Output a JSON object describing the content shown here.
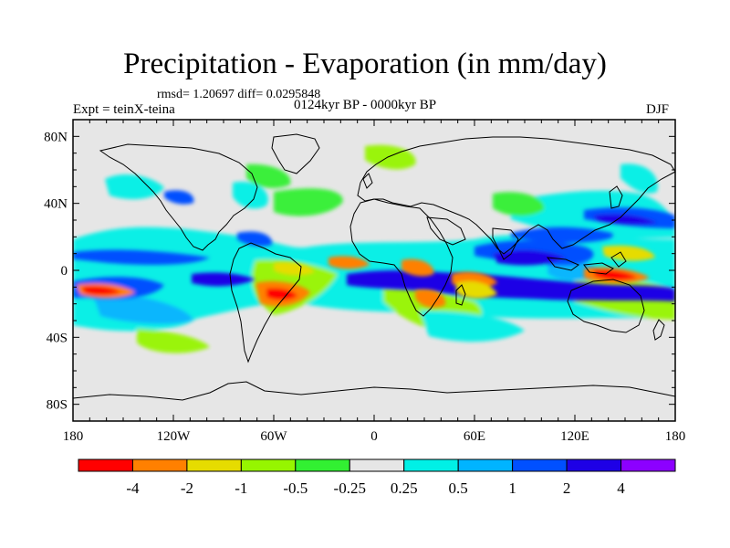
{
  "title": "Precipitation - Evaporation (in mm/day)",
  "stats": "rmsd= 1.20697 diff= 0.0295848",
  "experiment": "Expt = teinX-teina",
  "period": "0124kyr BP - 0000kyr BP",
  "season": "DJF",
  "map": {
    "projection": "cylindrical-equidistant",
    "lon_range": [
      -180,
      180
    ],
    "lat_range": [
      -90,
      90
    ],
    "y_ticks": [
      "80N",
      "40N",
      "0",
      "40S",
      "80S"
    ],
    "x_ticks": [
      "180",
      "120W",
      "60W",
      "0",
      "60E",
      "120E",
      "180"
    ],
    "missing_color": "#e6e6e6"
  },
  "colorbar": {
    "colors": [
      "#ff0000",
      "#ff8000",
      "#e6dc00",
      "#96f500",
      "#32f032",
      "#e6e6e6",
      "#00f0e6",
      "#00b4ff",
      "#0050ff",
      "#1e00e6",
      "#8c00ff"
    ],
    "labels": [
      "-4",
      "-2",
      "-1",
      "-0.5",
      "-0.25",
      "0.25",
      "0.5",
      "1",
      "2",
      "4"
    ]
  }
}
